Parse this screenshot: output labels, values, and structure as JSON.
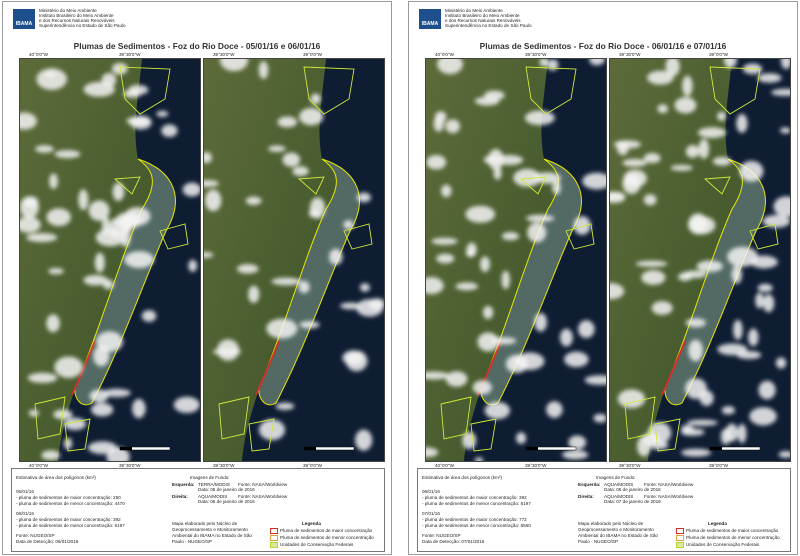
{
  "sheets": [
    {
      "header": [
        "Ministério do Meio Ambiente",
        "Instituto Brasileiro do Meio Ambiente",
        "e dos Recursos Naturais Renováveis",
        "Superintendência no Estado de São Paulo"
      ],
      "logo": "IBAMA",
      "title": "Plumas de Sedimentos - Foz do Rio Doce - 05/01/16 e 06/01/16",
      "panes": [
        {
          "lon_labels": [
            "40°0'0\"W",
            "39°30'0\"W"
          ]
        },
        {
          "lon_labels": [
            "39°30'0\"W",
            "39°0'0\"W"
          ]
        }
      ],
      "info": {
        "area_title": "Estimativa de área dos polígonos (km²)",
        "blocks": [
          {
            "date": "05/01/16",
            "lines": [
              "- pluma de sedimentos de maior concentração: 260",
              "- pluma de sedimentos de menor concentração: 4470"
            ]
          },
          {
            "date": "06/01/16",
            "lines": [
              "- pluma de sedimentos de maior concentração: 392",
              "- pluma de sedimentos de menor concentração: 6197"
            ]
          }
        ],
        "source": "Fonte: NUGEO/SP",
        "detection": "Data de Detecção: 06/01/2016",
        "images_title": "Imagens de Fundo:",
        "images": [
          {
            "side": "Esquerda:",
            "sensor": "TERRA/MODIS",
            "source": "Fonte: NASA/Worldview",
            "date": "Data: 05 de janeiro de 2016"
          },
          {
            "side": "Direita:",
            "sensor": "AQUA/MODIS",
            "source": "Fonte: NASA/Worldview",
            "date": "Data: 06 de janeiro de 2016"
          }
        ],
        "credit": "Mapa elaborado pelo Núcleo de Geoprocessamento e Monitoramento Ambiental do IBAMA no Estado de São Paulo - NUGEO/SP",
        "legend_title": "Legenda",
        "legend": [
          {
            "label": "Pluma de sedimentos de maior concentração",
            "color": "#d0302a"
          },
          {
            "label": "Pluma de sedimentos de menor concentração",
            "color": "#e8a040"
          },
          {
            "label": "Unidades de Conservação Federais",
            "color": "#b6d334"
          }
        ]
      }
    },
    {
      "header": [
        "Ministério do Meio Ambiente",
        "Instituto Brasileiro do Meio Ambiente",
        "e dos Recursos Naturais Renováveis",
        "Superintendência no Estado de São Paulo"
      ],
      "logo": "IBAMA",
      "title": "Plumas de Sedimentos - Foz do Rio Doce - 06/01/16 e 07/01/16",
      "panes": [
        {
          "lon_labels": [
            "40°0'0\"W",
            "39°30'0\"W"
          ]
        },
        {
          "lon_labels": [
            "39°30'0\"W",
            "39°0'0\"W"
          ]
        }
      ],
      "info": {
        "area_title": "Estimativa de área dos polígonos (km²)",
        "blocks": [
          {
            "date": "06/01/16",
            "lines": [
              "- pluma de sedimentos de maior concentração: 392",
              "- pluma de sedimentos de menor concentração: 6197"
            ]
          },
          {
            "date": "07/01/16",
            "lines": [
              "- pluma de sedimentos de maior concentração: 772",
              "- pluma de sedimentos de menor concentração: 6560"
            ]
          }
        ],
        "source": "Fonte: NUGEO/SP",
        "detection": "Data de Detecção: 07/01/2016",
        "images_title": "Imagens de Fundo:",
        "images": [
          {
            "side": "Esquerda:",
            "sensor": "AQUA/MODIS",
            "source": "Fonte: NASA/Worldview",
            "date": "Data: 06 de janeiro de 2016"
          },
          {
            "side": "Direita:",
            "sensor": "AQUA/MODIS",
            "source": "Fonte: NASA/Worldview",
            "date": "Data: 07 de janeiro de 2016"
          }
        ],
        "credit": "Mapa elaborado pelo Núcleo de Geoprocessamento e Monitoramento Ambiental do IBAMA no Estado de São Paulo - NUGEO/SP",
        "legend_title": "Legenda",
        "legend": [
          {
            "label": "Pluma de sedimentos de maior concentração",
            "color": "#d0302a"
          },
          {
            "label": "Pluma de sedimentos de menor concentração",
            "color": "#e8a040"
          },
          {
            "label": "Unidades de Conservação Federais",
            "color": "#b6d334"
          }
        ]
      }
    }
  ]
}
